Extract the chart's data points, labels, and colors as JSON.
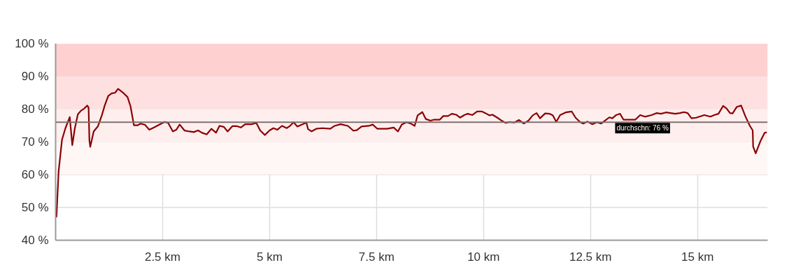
{
  "chart_data": {
    "type": "line",
    "x": [
      0.02,
      0.07,
      0.15,
      0.23,
      0.33,
      0.39,
      0.45,
      0.52,
      0.59,
      0.67,
      0.74,
      0.77,
      0.79,
      0.81,
      0.89,
      0.99,
      1.08,
      1.15,
      1.23,
      1.31,
      1.39,
      1.46,
      1.57,
      1.68,
      1.75,
      1.83,
      1.92,
      1.99,
      2.09,
      2.19,
      2.3,
      2.47,
      2.55,
      2.63,
      2.74,
      2.82,
      2.9,
      3.01,
      3.12,
      3.23,
      3.33,
      3.42,
      3.53,
      3.64,
      3.75,
      3.83,
      3.93,
      4.02,
      4.13,
      4.24,
      4.33,
      4.43,
      4.58,
      4.69,
      4.78,
      4.89,
      5.0,
      5.09,
      5.18,
      5.29,
      5.4,
      5.47,
      5.56,
      5.65,
      5.76,
      5.86,
      5.9,
      5.98,
      6.09,
      6.23,
      6.42,
      6.52,
      6.66,
      6.83,
      6.96,
      7.04,
      7.15,
      7.32,
      7.41,
      7.52,
      7.75,
      7.9,
      8.0,
      8.09,
      8.2,
      8.3,
      8.39,
      8.46,
      8.57,
      8.65,
      8.76,
      8.85,
      8.98,
      9.06,
      9.17,
      9.26,
      9.36,
      9.45,
      9.55,
      9.63,
      9.74,
      9.85,
      9.96,
      10.04,
      10.14,
      10.21,
      10.31,
      10.42,
      10.52,
      10.61,
      10.72,
      10.83,
      10.94,
      11.05,
      11.15,
      11.24,
      11.32,
      11.44,
      11.54,
      11.62,
      11.7,
      11.79,
      11.92,
      12.06,
      12.15,
      12.26,
      12.33,
      12.43,
      12.54,
      12.65,
      12.75,
      12.84,
      12.94,
      13.01,
      13.1,
      13.19,
      13.27,
      13.55,
      13.66,
      13.77,
      13.93,
      14.04,
      14.15,
      14.26,
      14.37,
      14.48,
      14.59,
      14.68,
      14.77,
      14.86,
      14.97,
      15.16,
      15.3,
      15.39,
      15.49,
      15.6,
      15.68,
      15.76,
      15.82,
      15.92,
      16.02,
      16.12,
      16.22,
      16.29,
      16.3,
      16.36,
      16.47,
      16.57,
      16.62
    ],
    "series": [
      {
        "color": "#8b0000",
        "values": [
          47.0,
          61,
          70.7,
          74.2,
          77.6,
          69,
          74.2,
          78.4,
          79.5,
          80.2,
          81.1,
          80.5,
          70.4,
          68.5,
          73.2,
          74.8,
          78.1,
          81.2,
          84,
          84.8,
          85,
          86.2,
          85.1,
          83.7,
          80.9,
          75.1,
          75.1,
          75.6,
          75.2,
          73.7,
          74.4,
          75.6,
          76.1,
          75.8,
          73.2,
          73.7,
          75.3,
          73.5,
          73.2,
          73,
          73.5,
          72.8,
          72.3,
          74,
          72.8,
          74.9,
          74.6,
          73.2,
          74.8,
          74.8,
          74.4,
          75.4,
          75.4,
          75.8,
          73.5,
          72.1,
          73.5,
          74.2,
          73.7,
          74.9,
          74.2,
          74.8,
          76,
          74.7,
          75.3,
          75.9,
          73.9,
          73.2,
          74,
          74.2,
          74,
          74.9,
          75.4,
          74.9,
          73.4,
          73.6,
          74.7,
          74.9,
          75.3,
          74,
          74,
          74.4,
          73.2,
          75.3,
          76,
          75.6,
          74.9,
          78.1,
          79.1,
          77,
          76.5,
          76.8,
          76.8,
          77.9,
          77.9,
          78.6,
          78.3,
          77.4,
          78.2,
          78.6,
          78.2,
          79.3,
          79.3,
          78.8,
          78.1,
          78.3,
          77.5,
          76.5,
          75.8,
          76.1,
          75.9,
          76.7,
          75.6,
          76.5,
          78.1,
          78.8,
          77.2,
          78.7,
          78.6,
          78.1,
          76.1,
          78.2,
          79,
          79.3,
          77.4,
          76,
          75.6,
          76.2,
          75.4,
          76,
          75.6,
          76.5,
          77.5,
          77.2,
          78.2,
          78.6,
          76.8,
          76.8,
          78.2,
          77.7,
          78.2,
          78.8,
          78.6,
          79,
          78.8,
          78.6,
          78.8,
          79.1,
          78.8,
          77.2,
          77.4,
          78.2,
          77.7,
          78.2,
          78.6,
          81,
          80.2,
          78.8,
          78.7,
          80.7,
          81.1,
          77.8,
          75,
          73.5,
          68.6,
          66.5,
          70.2,
          72.8,
          72.9
        ]
      }
    ],
    "xlim": [
      0,
      16.64
    ],
    "ylim": [
      40,
      100
    ],
    "xticks": [
      {
        "value": 2.5,
        "label": "2.5 km"
      },
      {
        "value": 5,
        "label": "5 km"
      },
      {
        "value": 7.5,
        "label": "7.5 km"
      },
      {
        "value": 10,
        "label": "10 km"
      },
      {
        "value": 12.5,
        "label": "12.5 km"
      },
      {
        "value": 15,
        "label": "15 km"
      }
    ],
    "yticks": [
      {
        "value": 40,
        "label": "40 %"
      },
      {
        "value": 50,
        "label": "50 %"
      },
      {
        "value": 60,
        "label": "60 %"
      },
      {
        "value": 70,
        "label": "70 %"
      },
      {
        "value": 80,
        "label": "80 %"
      },
      {
        "value": 90,
        "label": "90 %"
      },
      {
        "value": 100,
        "label": "100 %"
      }
    ],
    "bands": [
      {
        "axis": "y",
        "from": 90,
        "to": 100,
        "color": "#ffd0d0"
      },
      {
        "axis": "y",
        "from": 80,
        "to": 90,
        "color": "#ffe0e0"
      },
      {
        "axis": "y",
        "from": 70,
        "to": 80,
        "color": "#ffeeee"
      },
      {
        "axis": "y",
        "from": 60,
        "to": 70,
        "color": "#fff6f6"
      }
    ],
    "ref_lines": [
      {
        "axis": "y",
        "value": 76,
        "label": "durchschn: 76 %",
        "color": "#807070"
      }
    ],
    "grid": true,
    "marker": "none",
    "line_style": "solid"
  }
}
